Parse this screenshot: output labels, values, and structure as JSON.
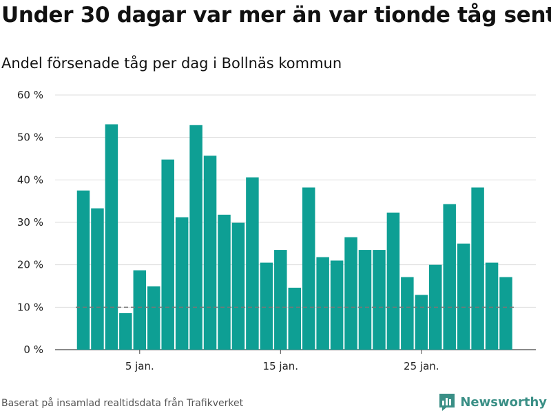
{
  "title": "Under 30 dagar var mer än var tionde tåg sent",
  "subtitle": "Andel försenade tåg per dag i Bollnäs kommun",
  "source": "Baserat på insamlad realtidsdata från Trafikverket",
  "brand": "Newsworthy",
  "colors": {
    "bar": "#0e9f94",
    "reference_line": "#777777",
    "grid": "#dddddd"
  },
  "chart_data": {
    "type": "bar",
    "title": "Under 30 dagar var mer än var tionde tåg sent",
    "subtitle": "Andel försenade tåg per dag i Bollnäs kommun",
    "x": [
      1,
      2,
      3,
      4,
      5,
      6,
      7,
      8,
      9,
      10,
      11,
      12,
      13,
      14,
      15,
      16,
      17,
      18,
      19,
      20,
      21,
      22,
      23,
      24,
      25,
      26,
      27,
      28,
      29,
      30,
      31
    ],
    "values": [
      37.5,
      33.3,
      53.1,
      8.6,
      18.7,
      14.9,
      44.8,
      31.2,
      52.9,
      45.7,
      31.8,
      29.9,
      40.6,
      20.5,
      23.5,
      14.6,
      38.2,
      21.8,
      21.0,
      26.5,
      23.5,
      23.5,
      32.3,
      17.1,
      12.9,
      20.0,
      34.3,
      25.0,
      38.2,
      20.5,
      17.1
    ],
    "reference_line": 10,
    "ylim": [
      0,
      60
    ],
    "yticks": [
      0,
      10,
      20,
      30,
      40,
      50,
      60
    ],
    "ytick_labels": [
      "0 %",
      "10 %",
      "20 %",
      "30 %",
      "40 %",
      "50 %",
      "60 %"
    ],
    "xticks": [
      5,
      15,
      25
    ],
    "xtick_labels": [
      "5 jan.",
      "15 jan.",
      "25 jan."
    ],
    "grid": true
  }
}
